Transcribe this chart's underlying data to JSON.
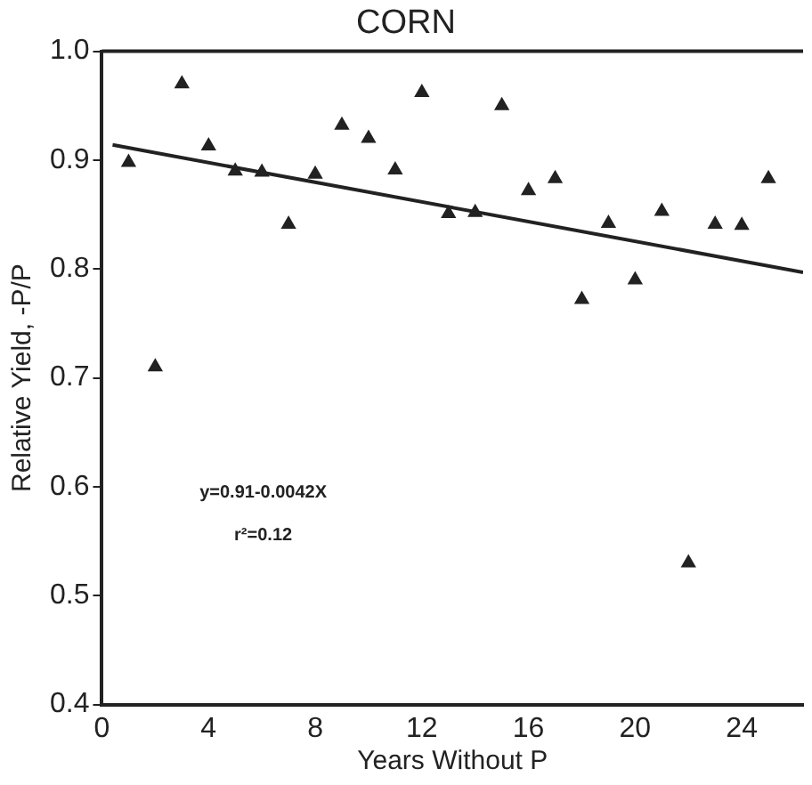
{
  "chart_data": {
    "type": "scatter",
    "title": "CORN",
    "xlabel": "Years Without P",
    "ylabel": "Relative Yield, -P/P",
    "xlim": [
      0,
      26.3
    ],
    "xticks": [
      0,
      4,
      8,
      12,
      16,
      20,
      24
    ],
    "ylim": [
      0.4,
      1.0
    ],
    "yticks": [
      0.4,
      0.5,
      0.6,
      0.7,
      0.8,
      0.9,
      {
        "value": 1,
        "label": "1.0"
      }
    ],
    "grid": false,
    "legend": false,
    "marker": "triangle",
    "series": [
      {
        "color": "#222222",
        "x": [
          1,
          2,
          3,
          4,
          5,
          6,
          7,
          8,
          9,
          10,
          11,
          12,
          13,
          14,
          15,
          16,
          17,
          18,
          19,
          20,
          21,
          22,
          23,
          24,
          25
        ],
        "values": [
          0.898,
          0.71,
          0.97,
          0.913,
          0.89,
          0.889,
          0.841,
          0.887,
          0.932,
          0.92,
          0.891,
          0.962,
          0.851,
          0.852,
          0.95,
          0.872,
          0.883,
          0.772,
          0.842,
          0.79,
          0.853,
          0.53,
          0.841,
          0.84,
          0.883
        ]
      },
      {
        "type": "line",
        "color": "#222222",
        "marker": "none",
        "line_style": "solid",
        "x": [
          0.4,
          26.3
        ],
        "values": [
          0.914,
          0.797
        ]
      }
    ],
    "annotations": [
      "y=0.91-0.0042X",
      "r²=0.12"
    ]
  }
}
